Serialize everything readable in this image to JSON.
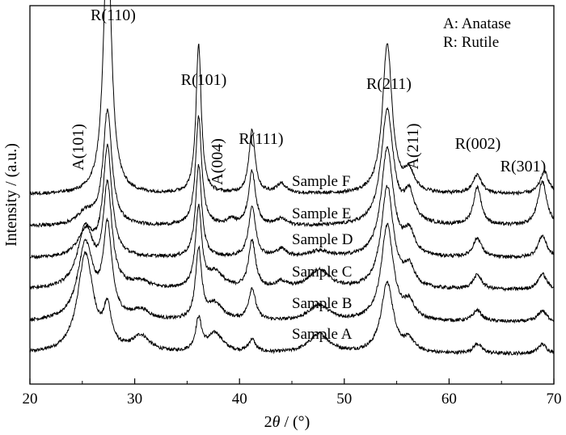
{
  "chart_data": {
    "type": "line",
    "title": "",
    "xlabel_prefix": "2",
    "xlabel_theta": "θ",
    "xlabel_suffix": " / (°)",
    "ylabel": "Intensity / (a.u.)",
    "xlim": [
      20,
      70
    ],
    "xticks": [
      "20",
      "30",
      "40",
      "50",
      "60",
      "70"
    ],
    "legend": {
      "position": "top-right",
      "lines": [
        "A: Anatase",
        "R: Rutile"
      ]
    },
    "peak_labels": [
      {
        "text": "R(110)",
        "x": 27.4
      },
      {
        "text": "R(101)",
        "x": 36.1
      },
      {
        "text": "A(004)",
        "x": 37.8
      },
      {
        "text": "R(111)",
        "x": 41.2
      },
      {
        "text": "R(211)",
        "x": 54.3
      },
      {
        "text": "A(211)",
        "x": 55.1
      },
      {
        "text": "R(002)",
        "x": 62.7
      },
      {
        "text": "R(301)",
        "x": 69.0
      },
      {
        "text": "A(101)",
        "x": 25.3
      }
    ],
    "series": [
      {
        "name": "Sample A",
        "baseline": 1.0,
        "peaks": [
          [
            25.3,
            3.1,
            0.9
          ],
          [
            27.4,
            1.2,
            0.45
          ],
          [
            30.6,
            0.5,
            1.0
          ],
          [
            36.1,
            1.0,
            0.35
          ],
          [
            37.7,
            0.6,
            0.9
          ],
          [
            41.2,
            0.4,
            0.4
          ],
          [
            47.6,
            0.6,
            1.2
          ],
          [
            54.1,
            2.2,
            0.7
          ],
          [
            56.2,
            0.35,
            0.6
          ],
          [
            62.7,
            0.3,
            0.5
          ],
          [
            68.9,
            0.3,
            0.5
          ]
        ]
      },
      {
        "name": "Sample B",
        "baseline": 2.0,
        "peaks": [
          [
            25.3,
            2.4,
            0.9
          ],
          [
            27.4,
            2.8,
            0.5
          ],
          [
            30.6,
            0.3,
            1.0
          ],
          [
            36.1,
            2.2,
            0.35
          ],
          [
            37.7,
            0.5,
            0.9
          ],
          [
            41.2,
            1.0,
            0.4
          ],
          [
            47.6,
            0.5,
            1.2
          ],
          [
            54.1,
            3.0,
            0.7
          ],
          [
            56.2,
            0.5,
            0.6
          ],
          [
            62.7,
            0.35,
            0.5
          ],
          [
            68.9,
            0.35,
            0.5
          ]
        ]
      },
      {
        "name": "Sample C",
        "baseline": 3.0,
        "peaks": [
          [
            25.3,
            1.9,
            0.9
          ],
          [
            27.4,
            3.1,
            0.5
          ],
          [
            30.6,
            0.2,
            1.0
          ],
          [
            36.1,
            2.5,
            0.35
          ],
          [
            37.7,
            0.5,
            0.9
          ],
          [
            41.2,
            1.5,
            0.4
          ],
          [
            44.0,
            0.2,
            0.6
          ],
          [
            47.6,
            0.6,
            1.2
          ],
          [
            54.1,
            3.2,
            0.7
          ],
          [
            56.2,
            0.6,
            0.6
          ],
          [
            62.7,
            0.45,
            0.5
          ],
          [
            68.9,
            0.5,
            0.5
          ]
        ]
      },
      {
        "name": "Sample D",
        "baseline": 4.0,
        "peaks": [
          [
            25.3,
            0.8,
            0.9
          ],
          [
            27.4,
            3.4,
            0.5
          ],
          [
            36.1,
            2.9,
            0.35
          ],
          [
            41.2,
            1.6,
            0.4
          ],
          [
            44.0,
            0.25,
            0.6
          ],
          [
            47.6,
            0.2,
            1.2
          ],
          [
            54.1,
            3.4,
            0.7
          ],
          [
            56.2,
            0.7,
            0.6
          ],
          [
            62.7,
            0.6,
            0.5
          ],
          [
            68.9,
            0.7,
            0.5
          ]
        ]
      },
      {
        "name": "Sample E",
        "baseline": 5.0,
        "peaks": [
          [
            25.3,
            0.4,
            0.9
          ],
          [
            27.4,
            3.6,
            0.5
          ],
          [
            36.1,
            3.4,
            0.35
          ],
          [
            39.2,
            0.2,
            0.4
          ],
          [
            41.2,
            1.7,
            0.4
          ],
          [
            44.0,
            0.2,
            0.6
          ],
          [
            54.1,
            3.6,
            0.7
          ],
          [
            56.2,
            0.9,
            0.6
          ],
          [
            62.7,
            1.2,
            0.45
          ],
          [
            68.9,
            1.4,
            0.5
          ]
        ]
      },
      {
        "name": "Sample F",
        "baseline": 6.0,
        "peaks": [
          [
            27.4,
            8.4,
            0.45
          ],
          [
            36.1,
            4.7,
            0.3
          ],
          [
            41.2,
            2.0,
            0.35
          ],
          [
            44.0,
            0.3,
            0.6
          ],
          [
            54.1,
            4.7,
            0.55
          ],
          [
            56.2,
            0.6,
            0.6
          ],
          [
            62.7,
            0.6,
            0.5
          ],
          [
            69.1,
            0.7,
            0.5
          ]
        ]
      }
    ]
  }
}
